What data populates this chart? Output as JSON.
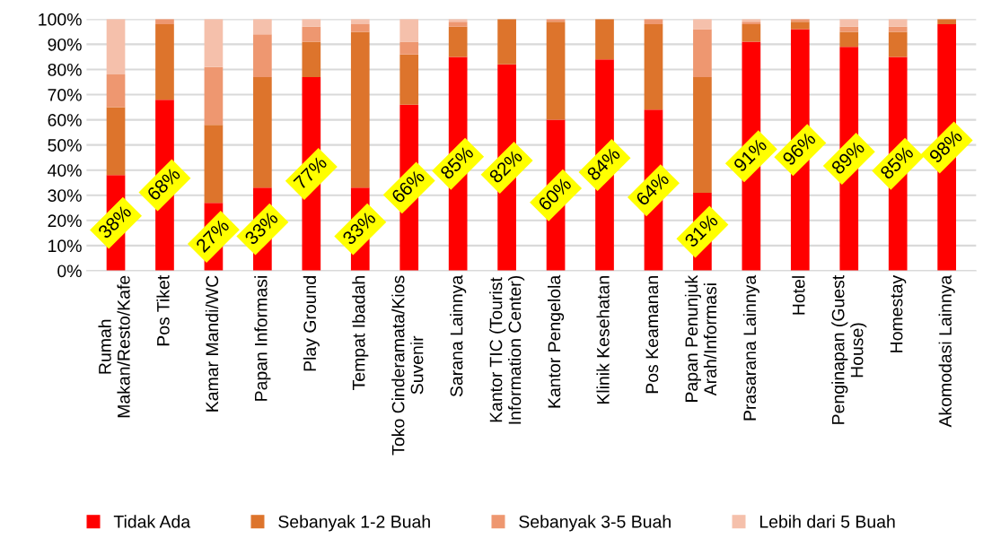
{
  "chart_data": {
    "type": "bar",
    "stacked": true,
    "categories": [
      "Rumah\nMakan/Resto/Kafe",
      "Pos Tiket",
      "Kamar Mandi/WC",
      "Papan Informasi",
      "Play Ground",
      "Tempat Ibadah",
      "Toko Cinderamata/Kios\nSuvenir",
      "Sarana Lainnya",
      "Kantor TIC (Tourist\nInformation Center)",
      "Kantor Pengelola",
      "Klinik Kesehatan",
      "Pos Keamanan",
      "Papan Penunjuk\nArah/Informasi",
      "Prasarana Lainnya",
      "Hotel",
      "Penginapan (Guest\nHouse)",
      "Homestay",
      "Akomodasi Lainnya"
    ],
    "series": [
      {
        "name": "Tidak Ada",
        "color": "#ff0000",
        "values": [
          38,
          68,
          27,
          33,
          77,
          33,
          66,
          85,
          82,
          60,
          84,
          64,
          31,
          91,
          96,
          89,
          85,
          98
        ],
        "value_labels": [
          "38%",
          "68%",
          "27%",
          "33%",
          "77%",
          "33%",
          "66%",
          "85%",
          "82%",
          "60%",
          "84%",
          "64%",
          "31%",
          "91%",
          "96%",
          "89%",
          "85%",
          "98%"
        ]
      },
      {
        "name": "Sebanyak 1-2 Buah",
        "color": "#dd742c",
        "values": [
          27,
          30,
          31,
          44,
          14,
          62,
          20,
          12,
          18,
          39,
          16,
          34,
          46,
          7,
          3,
          6,
          10,
          2
        ]
      },
      {
        "name": "Sebanyak 3-5 Buah",
        "color": "#ee9770",
        "values": [
          13,
          2,
          23,
          17,
          6,
          3,
          5,
          2,
          0,
          1,
          0,
          2,
          19,
          1,
          1,
          2,
          2,
          0
        ]
      },
      {
        "name": "Lebih dari 5 Buah",
        "color": "#f5c0ab",
        "values": [
          22,
          0,
          19,
          6,
          3,
          2,
          9,
          1,
          0,
          0,
          0,
          0,
          4,
          1,
          0,
          3,
          3,
          0
        ]
      }
    ],
    "ylim": [
      0,
      100
    ],
    "yticks": [
      {
        "value": 0,
        "label": "0%"
      },
      {
        "value": 10,
        "label": "10%"
      },
      {
        "value": 20,
        "label": "20%"
      },
      {
        "value": 30,
        "label": "30%"
      },
      {
        "value": 40,
        "label": "40%"
      },
      {
        "value": 50,
        "label": "50%"
      },
      {
        "value": 60,
        "label": "60%"
      },
      {
        "value": 70,
        "label": "70%"
      },
      {
        "value": 80,
        "label": "80%"
      },
      {
        "value": 90,
        "label": "90%"
      },
      {
        "value": 100,
        "label": "100%"
      }
    ],
    "grid": "y",
    "legend": "bottom"
  }
}
